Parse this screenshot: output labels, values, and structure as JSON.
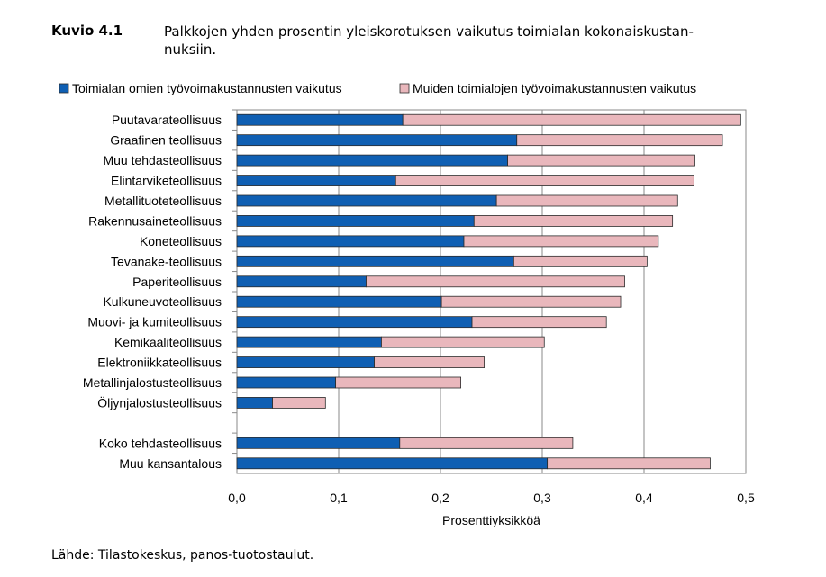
{
  "figure": {
    "label": "Kuvio 4.1",
    "title": "Palkkojen yhden prosentin yleiskorotuksen vaikutus toimialan kokonaiskustan-\nnuksiin.",
    "source": "Lähde: Tilastokeskus, panos-tuotostaulut."
  },
  "chart_data": {
    "type": "bar",
    "orientation": "horizontal",
    "stacked": true,
    "xlabel": "Prosenttiyksikköä",
    "xlim": [
      0,
      0.5
    ],
    "xticks": [
      "0,0",
      "0,1",
      "0,2",
      "0,3",
      "0,4",
      "0,5"
    ],
    "grid": true,
    "legend_position": "top",
    "categories": [
      "Puutavarateollisuus",
      "Graafinen teollisuus",
      "Muu tehdasteollisuus",
      "Elintarviketeollisuus",
      "Metallituoteteollisuus",
      "Rakennusaineteollisuus",
      "Koneteollisuus",
      "Tevanake-teollisuus",
      "Paperiteollisuus",
      "Kulkuneuvoteollisuus",
      "Muovi- ja kumiteollisuus",
      "Kemikaaliteollisuus",
      "Elektroniikkateollisuus",
      "Metallinjalostusteollisuus",
      "Öljynjalostusteollisuus",
      "",
      "Koko tehdasteollisuus",
      "Muu kansantalous"
    ],
    "series": [
      {
        "name": "Toimialan omien työvoimakustannusten vaikutus",
        "color": "#0f5fb3",
        "values": [
          0.163,
          0.275,
          0.266,
          0.156,
          0.255,
          0.233,
          0.223,
          0.272,
          0.127,
          0.201,
          0.231,
          0.142,
          0.135,
          0.097,
          0.035,
          null,
          0.16,
          0.305
        ]
      },
      {
        "name": "Muiden toimialojen työvoimakustannusten vaikutus",
        "color": "#e9b7bc",
        "values": [
          0.332,
          0.202,
          0.184,
          0.293,
          0.178,
          0.195,
          0.191,
          0.131,
          0.254,
          0.176,
          0.132,
          0.16,
          0.108,
          0.123,
          0.052,
          null,
          0.17,
          0.16
        ]
      }
    ]
  }
}
